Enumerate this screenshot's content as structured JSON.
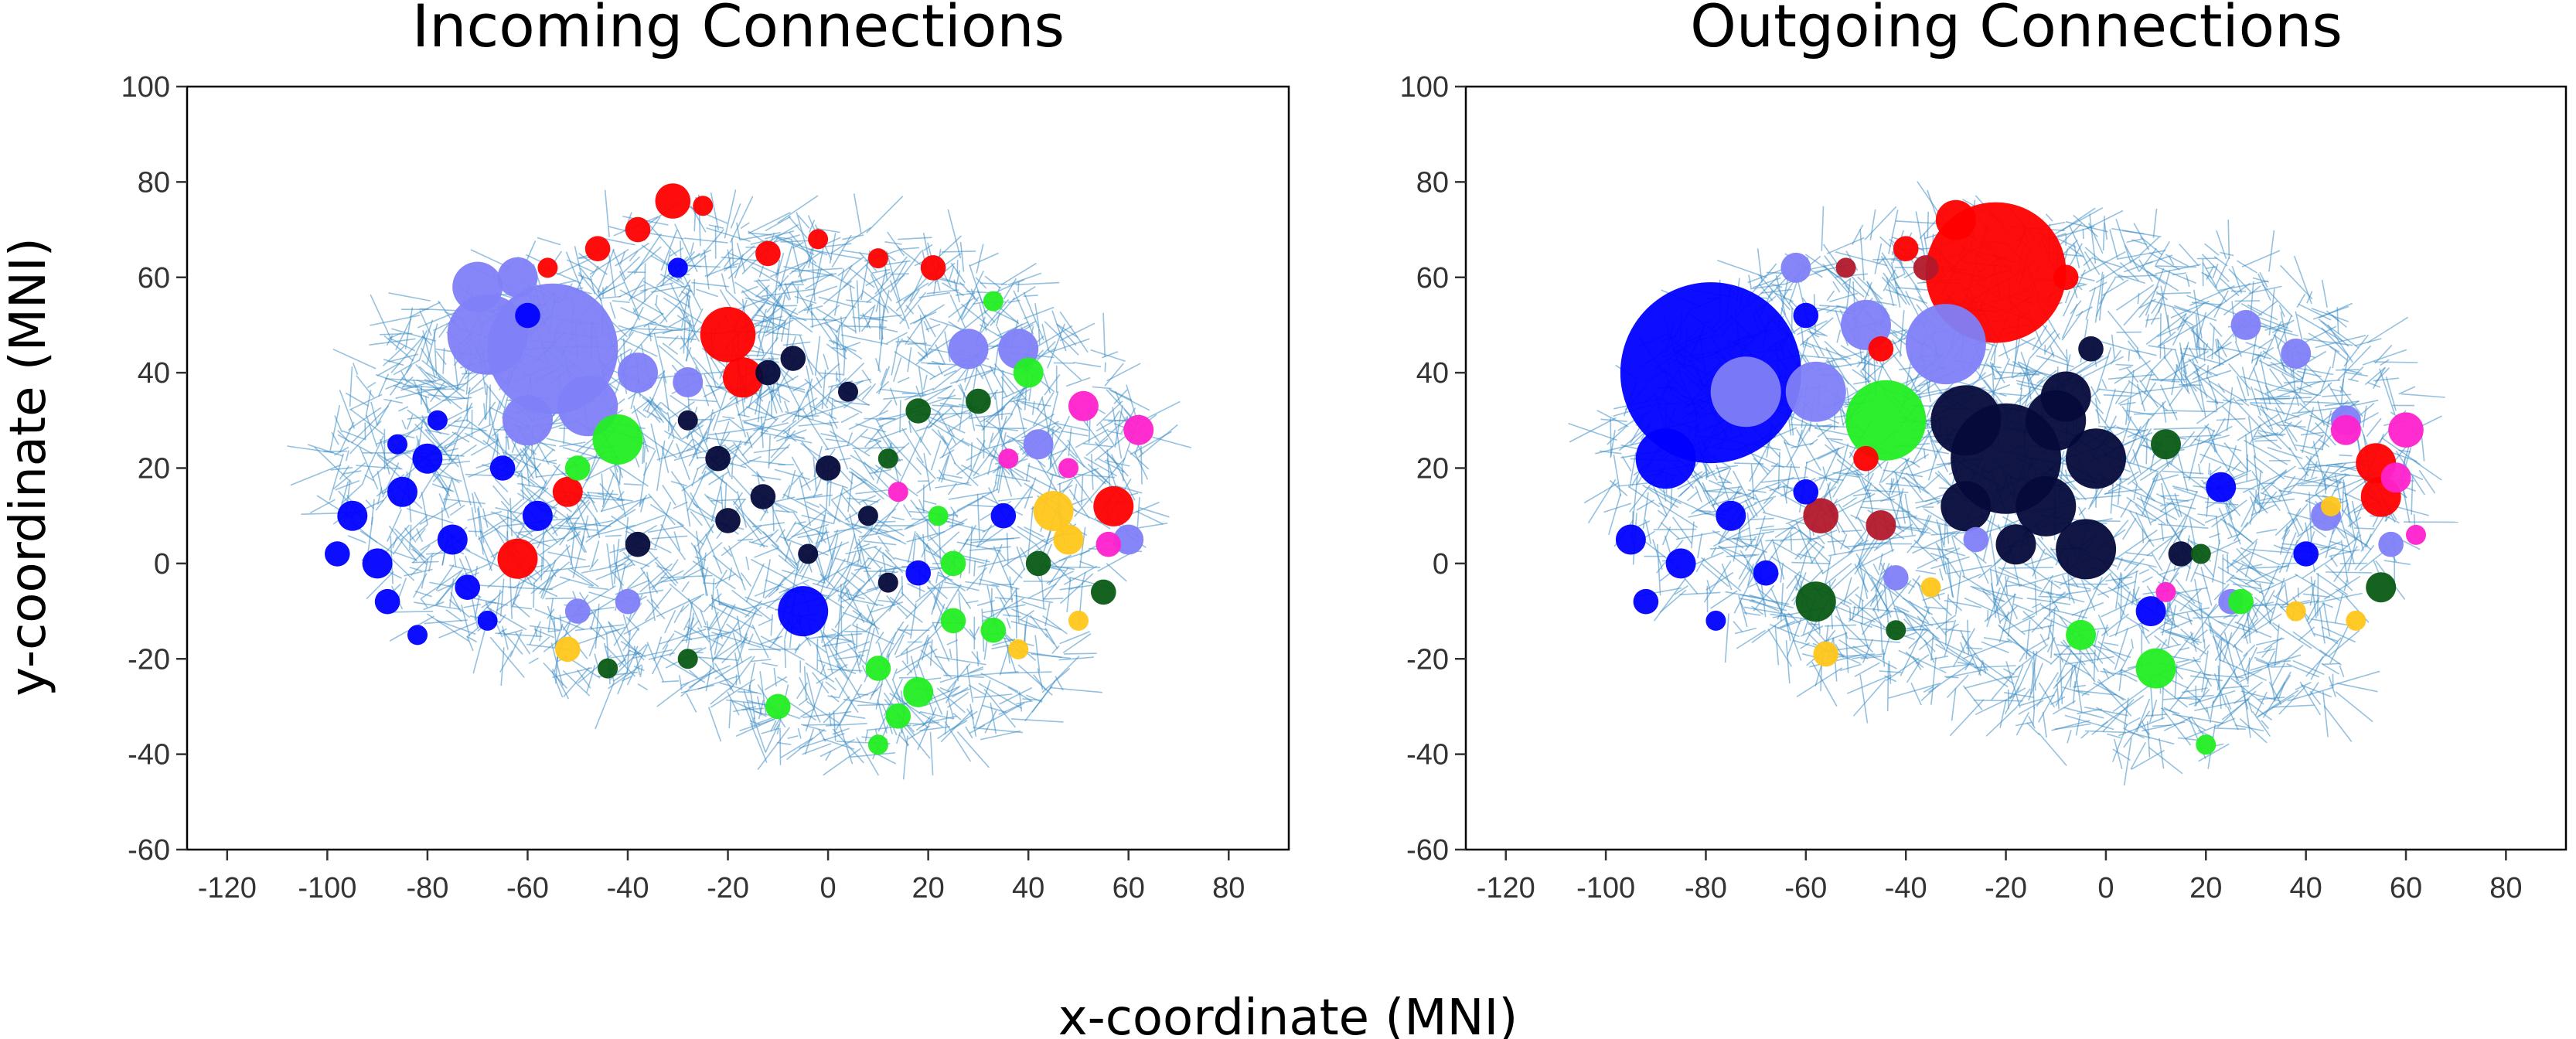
{
  "figure": {
    "ylabel": "y-coordinate (MNI)",
    "xlabel": "x-coordinate (MNI)"
  },
  "colors": {
    "edges": "#3e8ec4",
    "red": "#ff0000",
    "darkred": "#b2182b",
    "blue": "#0000ff",
    "lavender": "#8080f8",
    "navy": "#050a3a",
    "green": "#22ee22",
    "darkgreen": "#0a5a14",
    "magenta": "#ff22cc",
    "gold": "#ffc61a"
  },
  "chart_data": [
    {
      "type": "scatter",
      "title": "Incoming Connections",
      "xlim": [
        -128,
        92
      ],
      "ylim": [
        -60,
        100
      ],
      "xticks": [
        -120,
        -100,
        -80,
        -60,
        -40,
        -20,
        0,
        20,
        40,
        60,
        80
      ],
      "yticks": [
        -60,
        -40,
        -20,
        0,
        20,
        40,
        60,
        80,
        100
      ],
      "grid": false,
      "points": [
        {
          "x": -55,
          "y": 45,
          "r": 13,
          "c": "lavender"
        },
        {
          "x": -68,
          "y": 48,
          "r": 8,
          "c": "lavender"
        },
        {
          "x": -70,
          "y": 58,
          "r": 5,
          "c": "lavender"
        },
        {
          "x": -62,
          "y": 60,
          "r": 4,
          "c": "lavender"
        },
        {
          "x": -48,
          "y": 33,
          "r": 6,
          "c": "lavender"
        },
        {
          "x": -60,
          "y": 30,
          "r": 5,
          "c": "lavender"
        },
        {
          "x": -38,
          "y": 40,
          "r": 4,
          "c": "lavender"
        },
        {
          "x": -28,
          "y": 38,
          "r": 3,
          "c": "lavender"
        },
        {
          "x": 28,
          "y": 45,
          "r": 4,
          "c": "lavender"
        },
        {
          "x": 38,
          "y": 45,
          "r": 4,
          "c": "lavender"
        },
        {
          "x": 42,
          "y": 25,
          "r": 3,
          "c": "lavender"
        },
        {
          "x": 60,
          "y": 5,
          "r": 3,
          "c": "lavender"
        },
        {
          "x": -50,
          "y": -10,
          "r": 2.5,
          "c": "lavender"
        },
        {
          "x": -40,
          "y": -8,
          "r": 2.5,
          "c": "lavender"
        },
        {
          "x": -20,
          "y": 48,
          "r": 5.5,
          "c": "red"
        },
        {
          "x": -17,
          "y": 39,
          "r": 4,
          "c": "red"
        },
        {
          "x": -31,
          "y": 76,
          "r": 3.5,
          "c": "red"
        },
        {
          "x": -62,
          "y": 1,
          "r": 4,
          "c": "red"
        },
        {
          "x": 57,
          "y": 12,
          "r": 4,
          "c": "red"
        },
        {
          "x": -52,
          "y": 15,
          "r": 3,
          "c": "red"
        },
        {
          "x": 21,
          "y": 62,
          "r": 2.5,
          "c": "red"
        },
        {
          "x": -38,
          "y": 70,
          "r": 2.5,
          "c": "red"
        },
        {
          "x": -46,
          "y": 66,
          "r": 2.5,
          "c": "red"
        },
        {
          "x": -12,
          "y": 65,
          "r": 2.5,
          "c": "red"
        },
        {
          "x": -2,
          "y": 68,
          "r": 2,
          "c": "red"
        },
        {
          "x": -25,
          "y": 75,
          "r": 2,
          "c": "red"
        },
        {
          "x": -56,
          "y": 62,
          "r": 2,
          "c": "red"
        },
        {
          "x": 10,
          "y": 64,
          "r": 2,
          "c": "red"
        },
        {
          "x": -5,
          "y": -10,
          "r": 5,
          "c": "blue"
        },
        {
          "x": -95,
          "y": 10,
          "r": 3,
          "c": "blue"
        },
        {
          "x": -85,
          "y": 15,
          "r": 3,
          "c": "blue"
        },
        {
          "x": -80,
          "y": 22,
          "r": 3,
          "c": "blue"
        },
        {
          "x": -90,
          "y": 0,
          "r": 3,
          "c": "blue"
        },
        {
          "x": -75,
          "y": 5,
          "r": 3,
          "c": "blue"
        },
        {
          "x": -58,
          "y": 10,
          "r": 3,
          "c": "blue"
        },
        {
          "x": -72,
          "y": -5,
          "r": 2.5,
          "c": "blue"
        },
        {
          "x": -88,
          "y": -8,
          "r": 2.5,
          "c": "blue"
        },
        {
          "x": -98,
          "y": 2,
          "r": 2.5,
          "c": "blue"
        },
        {
          "x": -65,
          "y": 20,
          "r": 2.5,
          "c": "blue"
        },
        {
          "x": -78,
          "y": 30,
          "r": 2,
          "c": "blue"
        },
        {
          "x": -86,
          "y": 25,
          "r": 2,
          "c": "blue"
        },
        {
          "x": -68,
          "y": -12,
          "r": 2,
          "c": "blue"
        },
        {
          "x": -82,
          "y": -15,
          "r": 2,
          "c": "blue"
        },
        {
          "x": -60,
          "y": 52,
          "r": 2.5,
          "c": "blue"
        },
        {
          "x": -30,
          "y": 62,
          "r": 2,
          "c": "blue"
        },
        {
          "x": 35,
          "y": 10,
          "r": 2.5,
          "c": "blue"
        },
        {
          "x": 18,
          "y": -2,
          "r": 2.5,
          "c": "blue"
        },
        {
          "x": -42,
          "y": 26,
          "r": 5,
          "c": "green"
        },
        {
          "x": 18,
          "y": -27,
          "r": 3,
          "c": "green"
        },
        {
          "x": 40,
          "y": 40,
          "r": 3,
          "c": "green"
        },
        {
          "x": 10,
          "y": -22,
          "r": 2.5,
          "c": "green"
        },
        {
          "x": 25,
          "y": -12,
          "r": 2.5,
          "c": "green"
        },
        {
          "x": 33,
          "y": -14,
          "r": 2.5,
          "c": "green"
        },
        {
          "x": -10,
          "y": -30,
          "r": 2.5,
          "c": "green"
        },
        {
          "x": 14,
          "y": -32,
          "r": 2.5,
          "c": "green"
        },
        {
          "x": 25,
          "y": 0,
          "r": 2.5,
          "c": "green"
        },
        {
          "x": -50,
          "y": 20,
          "r": 2.5,
          "c": "green"
        },
        {
          "x": 10,
          "y": -38,
          "r": 2,
          "c": "green"
        },
        {
          "x": 33,
          "y": 55,
          "r": 2,
          "c": "green"
        },
        {
          "x": 22,
          "y": 10,
          "r": 2,
          "c": "green"
        },
        {
          "x": 30,
          "y": 34,
          "r": 2.5,
          "c": "darkgreen"
        },
        {
          "x": 42,
          "y": 0,
          "r": 2.5,
          "c": "darkgreen"
        },
        {
          "x": 55,
          "y": -6,
          "r": 2.5,
          "c": "darkgreen"
        },
        {
          "x": 18,
          "y": 32,
          "r": 2.5,
          "c": "darkgreen"
        },
        {
          "x": 12,
          "y": 22,
          "r": 2,
          "c": "darkgreen"
        },
        {
          "x": -28,
          "y": -20,
          "r": 2,
          "c": "darkgreen"
        },
        {
          "x": -44,
          "y": -22,
          "r": 2,
          "c": "darkgreen"
        },
        {
          "x": -12,
          "y": 40,
          "r": 2.5,
          "c": "navy"
        },
        {
          "x": -7,
          "y": 43,
          "r": 2.5,
          "c": "navy"
        },
        {
          "x": -22,
          "y": 22,
          "r": 2.5,
          "c": "navy"
        },
        {
          "x": -13,
          "y": 14,
          "r": 2.5,
          "c": "navy"
        },
        {
          "x": 0,
          "y": 20,
          "r": 2.5,
          "c": "navy"
        },
        {
          "x": -38,
          "y": 4,
          "r": 2.5,
          "c": "navy"
        },
        {
          "x": -20,
          "y": 9,
          "r": 2.5,
          "c": "navy"
        },
        {
          "x": 4,
          "y": 36,
          "r": 2,
          "c": "navy"
        },
        {
          "x": 8,
          "y": 10,
          "r": 2,
          "c": "navy"
        },
        {
          "x": -4,
          "y": 2,
          "r": 2,
          "c": "navy"
        },
        {
          "x": -28,
          "y": 30,
          "r": 2,
          "c": "navy"
        },
        {
          "x": 12,
          "y": -4,
          "r": 2,
          "c": "navy"
        },
        {
          "x": 62,
          "y": 28,
          "r": 3,
          "c": "magenta"
        },
        {
          "x": 51,
          "y": 33,
          "r": 3,
          "c": "magenta"
        },
        {
          "x": 56,
          "y": 4,
          "r": 2.5,
          "c": "magenta"
        },
        {
          "x": 36,
          "y": 22,
          "r": 2,
          "c": "magenta"
        },
        {
          "x": 48,
          "y": 20,
          "r": 2,
          "c": "magenta"
        },
        {
          "x": 14,
          "y": 15,
          "r": 2,
          "c": "magenta"
        },
        {
          "x": 45,
          "y": 11,
          "r": 4,
          "c": "gold"
        },
        {
          "x": 48,
          "y": 5,
          "r": 3,
          "c": "gold"
        },
        {
          "x": -52,
          "y": -18,
          "r": 2.5,
          "c": "gold"
        },
        {
          "x": 38,
          "y": -18,
          "r": 2,
          "c": "gold"
        },
        {
          "x": 50,
          "y": -12,
          "r": 2,
          "c": "gold"
        }
      ]
    },
    {
      "type": "scatter",
      "title": "Outgoing Connections",
      "xlim": [
        -128,
        92
      ],
      "ylim": [
        -60,
        100
      ],
      "xticks": [
        -120,
        -100,
        -80,
        -60,
        -40,
        -20,
        0,
        20,
        40,
        60,
        80
      ],
      "yticks": [
        -60,
        -40,
        -20,
        0,
        20,
        40,
        60,
        80,
        100
      ],
      "grid": false,
      "points": [
        {
          "x": -79,
          "y": 40,
          "r": 18,
          "c": "blue"
        },
        {
          "x": -88,
          "y": 22,
          "r": 6,
          "c": "blue"
        },
        {
          "x": -95,
          "y": 5,
          "r": 3,
          "c": "blue"
        },
        {
          "x": -85,
          "y": 0,
          "r": 3,
          "c": "blue"
        },
        {
          "x": -75,
          "y": 10,
          "r": 3,
          "c": "blue"
        },
        {
          "x": -92,
          "y": -8,
          "r": 2.5,
          "c": "blue"
        },
        {
          "x": -68,
          "y": -2,
          "r": 2.5,
          "c": "blue"
        },
        {
          "x": -60,
          "y": 15,
          "r": 2.5,
          "c": "blue"
        },
        {
          "x": -78,
          "y": -12,
          "r": 2,
          "c": "blue"
        },
        {
          "x": 9,
          "y": -10,
          "r": 3,
          "c": "blue"
        },
        {
          "x": 23,
          "y": 16,
          "r": 3,
          "c": "blue"
        },
        {
          "x": 40,
          "y": 2,
          "r": 2.5,
          "c": "blue"
        },
        {
          "x": -60,
          "y": 52,
          "r": 2.5,
          "c": "blue"
        },
        {
          "x": -22,
          "y": 61,
          "r": 14,
          "c": "red"
        },
        {
          "x": -30,
          "y": 72,
          "r": 4,
          "c": "red"
        },
        {
          "x": 54,
          "y": 21,
          "r": 4,
          "c": "red"
        },
        {
          "x": 55,
          "y": 14,
          "r": 4,
          "c": "red"
        },
        {
          "x": -40,
          "y": 66,
          "r": 2.5,
          "c": "red"
        },
        {
          "x": -48,
          "y": 22,
          "r": 2.5,
          "c": "red"
        },
        {
          "x": -8,
          "y": 60,
          "r": 2.5,
          "c": "red"
        },
        {
          "x": -45,
          "y": 45,
          "r": 2.5,
          "c": "red"
        },
        {
          "x": -57,
          "y": 10,
          "r": 3.5,
          "c": "darkred"
        },
        {
          "x": -45,
          "y": 8,
          "r": 3,
          "c": "darkred"
        },
        {
          "x": -36,
          "y": 62,
          "r": 2.5,
          "c": "darkred"
        },
        {
          "x": -52,
          "y": 62,
          "r": 2,
          "c": "darkred"
        },
        {
          "x": -32,
          "y": 46,
          "r": 8,
          "c": "lavender"
        },
        {
          "x": -72,
          "y": 36,
          "r": 7,
          "c": "lavender"
        },
        {
          "x": -58,
          "y": 36,
          "r": 6,
          "c": "lavender"
        },
        {
          "x": -48,
          "y": 50,
          "r": 5,
          "c": "lavender"
        },
        {
          "x": -62,
          "y": 62,
          "r": 3,
          "c": "lavender"
        },
        {
          "x": 28,
          "y": 50,
          "r": 3,
          "c": "lavender"
        },
        {
          "x": 38,
          "y": 44,
          "r": 3,
          "c": "lavender"
        },
        {
          "x": 48,
          "y": 30,
          "r": 3,
          "c": "lavender"
        },
        {
          "x": 44,
          "y": 10,
          "r": 3,
          "c": "lavender"
        },
        {
          "x": 57,
          "y": 4,
          "r": 2.5,
          "c": "lavender"
        },
        {
          "x": -42,
          "y": -3,
          "r": 2.5,
          "c": "lavender"
        },
        {
          "x": -26,
          "y": 5,
          "r": 2.5,
          "c": "lavender"
        },
        {
          "x": 25,
          "y": -8,
          "r": 2.5,
          "c": "lavender"
        },
        {
          "x": -20,
          "y": 22,
          "r": 11,
          "c": "navy"
        },
        {
          "x": -28,
          "y": 30,
          "r": 7,
          "c": "navy"
        },
        {
          "x": -10,
          "y": 30,
          "r": 6,
          "c": "navy"
        },
        {
          "x": -2,
          "y": 22,
          "r": 6,
          "c": "navy"
        },
        {
          "x": -8,
          "y": 35,
          "r": 5,
          "c": "navy"
        },
        {
          "x": -12,
          "y": 12,
          "r": 6,
          "c": "navy"
        },
        {
          "x": -4,
          "y": 3,
          "r": 6,
          "c": "navy"
        },
        {
          "x": -28,
          "y": 12,
          "r": 5,
          "c": "navy"
        },
        {
          "x": -18,
          "y": 4,
          "r": 4,
          "c": "navy"
        },
        {
          "x": -3,
          "y": 45,
          "r": 2.5,
          "c": "navy"
        },
        {
          "x": 15,
          "y": 2,
          "r": 2.5,
          "c": "navy"
        },
        {
          "x": -44,
          "y": 30,
          "r": 8,
          "c": "green"
        },
        {
          "x": 10,
          "y": -22,
          "r": 4,
          "c": "green"
        },
        {
          "x": -5,
          "y": -15,
          "r": 3,
          "c": "green"
        },
        {
          "x": 27,
          "y": -8,
          "r": 2.5,
          "c": "green"
        },
        {
          "x": 20,
          "y": -38,
          "r": 2,
          "c": "green"
        },
        {
          "x": -58,
          "y": -8,
          "r": 4,
          "c": "darkgreen"
        },
        {
          "x": 55,
          "y": -5,
          "r": 3,
          "c": "darkgreen"
        },
        {
          "x": 12,
          "y": 25,
          "r": 3,
          "c": "darkgreen"
        },
        {
          "x": -42,
          "y": -14,
          "r": 2,
          "c": "darkgreen"
        },
        {
          "x": 19,
          "y": 2,
          "r": 2,
          "c": "darkgreen"
        },
        {
          "x": 60,
          "y": 28,
          "r": 3.5,
          "c": "magenta"
        },
        {
          "x": 48,
          "y": 28,
          "r": 3,
          "c": "magenta"
        },
        {
          "x": 58,
          "y": 18,
          "r": 3,
          "c": "magenta"
        },
        {
          "x": 62,
          "y": 6,
          "r": 2,
          "c": "magenta"
        },
        {
          "x": 12,
          "y": -6,
          "r": 2,
          "c": "magenta"
        },
        {
          "x": -56,
          "y": -19,
          "r": 2.5,
          "c": "gold"
        },
        {
          "x": 38,
          "y": -10,
          "r": 2,
          "c": "gold"
        },
        {
          "x": 50,
          "y": -12,
          "r": 2,
          "c": "gold"
        },
        {
          "x": -35,
          "y": -5,
          "r": 2,
          "c": "gold"
        },
        {
          "x": 45,
          "y": 12,
          "r": 2,
          "c": "gold"
        }
      ]
    }
  ]
}
